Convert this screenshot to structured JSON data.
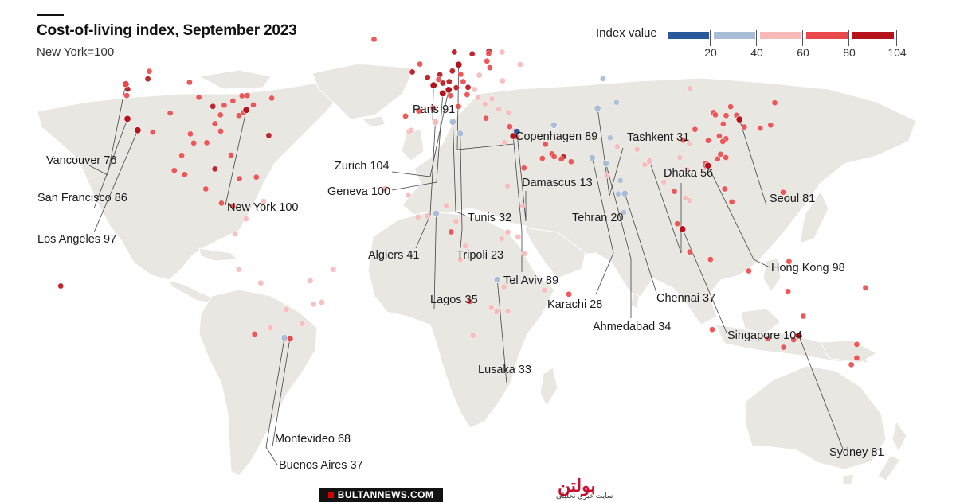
{
  "title": "Cost-of-living index, September 2023",
  "subtitle": "New York=100",
  "legend": {
    "title": "Index value",
    "ticks": [
      "20",
      "40",
      "60",
      "80",
      "104"
    ],
    "colors": [
      "#2a5a9a",
      "#a9bdd6",
      "#f7b9b9",
      "#e9494a",
      "#b5121b"
    ]
  },
  "map_data": {
    "labeled_cities": [
      {
        "name": "Vancouver",
        "value": 76,
        "lat": 49.3,
        "lon": -123.1,
        "label": "Vancouver 76"
      },
      {
        "name": "San Francisco",
        "value": 86,
        "lat": 37.8,
        "lon": -122.4,
        "label": "San Francisco 86"
      },
      {
        "name": "Los Angeles",
        "value": 97,
        "lat": 34.0,
        "lon": -118.2,
        "label": "Los Angeles 97"
      },
      {
        "name": "New York",
        "value": 100,
        "lat": 40.7,
        "lon": -74.0,
        "label": "New York 100"
      },
      {
        "name": "Paris",
        "value": 91,
        "lat": 48.9,
        "lon": 2.35,
        "label": "Paris 91"
      },
      {
        "name": "Copenhagen",
        "value": 89,
        "lat": 55.7,
        "lon": 12.6,
        "label": "Copenhagen 89"
      },
      {
        "name": "Zurich",
        "value": 104,
        "lat": 47.4,
        "lon": 8.5,
        "label": "Zurich 104"
      },
      {
        "name": "Geneva",
        "value": 100,
        "lat": 46.2,
        "lon": 6.1,
        "label": "Geneva 100"
      },
      {
        "name": "Tunis",
        "value": 32,
        "lat": 36.8,
        "lon": 10.2,
        "label": "Tunis 32"
      },
      {
        "name": "Algiers",
        "value": 41,
        "lat": 36.8,
        "lon": 3.1,
        "label": "Algiers 41"
      },
      {
        "name": "Tripoli",
        "value": 23,
        "lat": 32.9,
        "lon": 13.2,
        "label": "Tripoli 23"
      },
      {
        "name": "Damascus",
        "value": 13,
        "lat": 33.5,
        "lon": 36.3,
        "label": "Damascus 13"
      },
      {
        "name": "Tel Aviv",
        "value": 89,
        "lat": 32.1,
        "lon": 34.8,
        "label": "Tel Aviv 89"
      },
      {
        "name": "Tehran",
        "value": 20,
        "lat": 35.7,
        "lon": 51.4,
        "label": "Tehran 20"
      },
      {
        "name": "Tashkent",
        "value": 31,
        "lat": 41.3,
        "lon": 69.2,
        "label": "Tashkent 31"
      },
      {
        "name": "Dhaka",
        "value": 56,
        "lat": 23.8,
        "lon": 90.4,
        "label": "Dhaka 56"
      },
      {
        "name": "Karachi",
        "value": 28,
        "lat": 24.9,
        "lon": 67.0,
        "label": "Karachi 28"
      },
      {
        "name": "Ahmedabad",
        "value": 34,
        "lat": 23.0,
        "lon": 72.6,
        "label": "Ahmedabad 34"
      },
      {
        "name": "Chennai",
        "value": 37,
        "lat": 13.1,
        "lon": 80.3,
        "label": "Chennai 37"
      },
      {
        "name": "Seoul",
        "value": 81,
        "lat": 37.6,
        "lon": 127.0,
        "label": "Seoul 81"
      },
      {
        "name": "Hong Kong",
        "value": 98,
        "lat": 22.3,
        "lon": 114.2,
        "label": "Hong Kong 98"
      },
      {
        "name": "Singapore",
        "value": 104,
        "lat": 1.35,
        "lon": 103.8,
        "label": "Singapore 104"
      },
      {
        "name": "Lagos",
        "value": 35,
        "lat": 6.5,
        "lon": 3.4,
        "label": "Lagos 35"
      },
      {
        "name": "Lusaka",
        "value": 33,
        "lat": -15.4,
        "lon": 28.3,
        "label": "Lusaka 33"
      },
      {
        "name": "Montevideo",
        "value": 68,
        "lat": -34.9,
        "lon": -56.2,
        "label": "Montevideo 68"
      },
      {
        "name": "Buenos Aires",
        "value": 37,
        "lat": -34.6,
        "lon": -58.4,
        "label": "Buenos Aires 37"
      },
      {
        "name": "Sydney",
        "value": 81,
        "lat": -33.9,
        "lon": 151.2,
        "label": "Sydney 81"
      }
    ],
    "other_cities": [
      {
        "value": 76,
        "lat": 53.5,
        "lon": -113.5
      },
      {
        "value": 80,
        "lat": 51.0,
        "lon": -114.1
      },
      {
        "value": 75,
        "lat": 45.5,
        "lon": -73.6
      },
      {
        "value": 78,
        "lat": 43.7,
        "lon": -79.4
      },
      {
        "value": 74,
        "lat": 49.9,
        "lon": -97.1
      },
      {
        "value": 72,
        "lat": 44.6,
        "lon": -63.6
      },
      {
        "value": 70,
        "lat": 45.4,
        "lon": -75.7
      },
      {
        "value": 80,
        "lat": 47.6,
        "lon": -122.3
      },
      {
        "value": 76,
        "lat": 45.5,
        "lon": -122.7
      },
      {
        "value": 82,
        "lat": 41.9,
        "lon": -87.6
      },
      {
        "value": 78,
        "lat": 42.4,
        "lon": -71.1
      },
      {
        "value": 72,
        "lat": 39.7,
        "lon": -105.0
      },
      {
        "value": 75,
        "lat": 38.9,
        "lon": -77.0
      },
      {
        "value": 70,
        "lat": 42.3,
        "lon": -83.0
      },
      {
        "value": 72,
        "lat": 39.9,
        "lon": -75.2
      },
      {
        "value": 70,
        "lat": 44.9,
        "lon": -93.3
      },
      {
        "value": 68,
        "lat": 33.7,
        "lon": -84.4
      },
      {
        "value": 72,
        "lat": 29.8,
        "lon": -95.4
      },
      {
        "value": 70,
        "lat": 32.8,
        "lon": -96.8
      },
      {
        "value": 74,
        "lat": 25.8,
        "lon": -80.2
      },
      {
        "value": 66,
        "lat": 36.2,
        "lon": -86.8
      },
      {
        "value": 70,
        "lat": 33.4,
        "lon": -112.1
      },
      {
        "value": 64,
        "lat": 29.9,
        "lon": -90.1
      },
      {
        "value": 72,
        "lat": 39.1,
        "lon": -84.5
      },
      {
        "value": 90,
        "lat": 32.3,
        "lon": -64.8
      },
      {
        "value": 78,
        "lat": 64.1,
        "lon": -21.9
      },
      {
        "value": 62,
        "lat": 20.7,
        "lon": -103.3
      },
      {
        "value": 66,
        "lat": 25.7,
        "lon": -100.3
      },
      {
        "value": 72,
        "lat": 19.4,
        "lon": -99.1
      },
      {
        "value": 80,
        "lat": 21.2,
        "lon": -86.8
      },
      {
        "value": 70,
        "lat": 9.9,
        "lon": -84.1
      },
      {
        "value": 72,
        "lat": 8.9,
        "lon": -79.5
      },
      {
        "value": 78,
        "lat": 18.5,
        "lon": -69.9
      },
      {
        "value": 66,
        "lat": 18.0,
        "lon": -76.8
      },
      {
        "value": 60,
        "lat": 14.6,
        "lon": -90.5
      },
      {
        "value": 48,
        "lat": 10.5,
        "lon": -66.9
      },
      {
        "value": 45,
        "lat": 4.7,
        "lon": -74.1
      },
      {
        "value": 50,
        "lat": -0.2,
        "lon": -78.5
      },
      {
        "value": 55,
        "lat": -12.0,
        "lon": -77.0
      },
      {
        "value": 40,
        "lat": -15.8,
        "lon": -47.9
      },
      {
        "value": 45,
        "lat": -23.5,
        "lon": -46.6
      },
      {
        "value": 42,
        "lat": -22.9,
        "lon": -43.2
      },
      {
        "value": 62,
        "lat": -33.4,
        "lon": -70.6
      },
      {
        "value": 42,
        "lat": -16.5,
        "lon": -68.1
      },
      {
        "value": 48,
        "lat": -25.3,
        "lon": -57.6
      },
      {
        "value": 45,
        "lat": -31.4,
        "lon": -64.2
      },
      {
        "value": 55,
        "lat": -12.0,
        "lon": -38.5
      },
      {
        "value": 46,
        "lat": -30.0,
        "lon": -51.2
      },
      {
        "value": 84,
        "lat": 51.5,
        "lon": -0.1
      },
      {
        "value": 80,
        "lat": 53.3,
        "lon": -6.3
      },
      {
        "value": 76,
        "lat": 55.9,
        "lon": -3.2
      },
      {
        "value": 80,
        "lat": 52.4,
        "lon": 4.9
      },
      {
        "value": 78,
        "lat": 50.8,
        "lon": 4.4
      },
      {
        "value": 86,
        "lat": 49.6,
        "lon": 6.1
      },
      {
        "value": 80,
        "lat": 50.1,
        "lon": 8.7
      },
      {
        "value": 78,
        "lat": 52.5,
        "lon": 13.4
      },
      {
        "value": 82,
        "lat": 48.1,
        "lon": 11.6
      },
      {
        "value": 80,
        "lat": 53.6,
        "lon": 10.0
      },
      {
        "value": 80,
        "lat": 48.2,
        "lon": 16.4
      },
      {
        "value": 74,
        "lat": 45.5,
        "lon": 9.2
      },
      {
        "value": 68,
        "lat": 41.9,
        "lon": 12.5
      },
      {
        "value": 66,
        "lat": 40.4,
        "lon": -3.7
      },
      {
        "value": 64,
        "lat": 41.4,
        "lon": 2.2
      },
      {
        "value": 62,
        "lat": 38.7,
        "lon": -9.1
      },
      {
        "value": 86,
        "lat": 59.9,
        "lon": 10.8
      },
      {
        "value": 80,
        "lat": 59.3,
        "lon": 18.1
      },
      {
        "value": 80,
        "lat": 60.2,
        "lon": 24.9
      },
      {
        "value": 68,
        "lat": 56.9,
        "lon": 24.1
      },
      {
        "value": 66,
        "lat": 59.4,
        "lon": 24.8
      },
      {
        "value": 62,
        "lat": 54.7,
        "lon": 25.3
      },
      {
        "value": 58,
        "lat": 52.2,
        "lon": 21.0
      },
      {
        "value": 66,
        "lat": 50.1,
        "lon": 14.4
      },
      {
        "value": 58,
        "lat": 47.5,
        "lon": 19.0
      },
      {
        "value": 50,
        "lat": 44.4,
        "lon": 26.1
      },
      {
        "value": 48,
        "lat": 42.7,
        "lon": 23.3
      },
      {
        "value": 52,
        "lat": 44.8,
        "lon": 20.5
      },
      {
        "value": 60,
        "lat": 45.8,
        "lon": 16.0
      },
      {
        "value": 62,
        "lat": 37.98,
        "lon": 23.7
      },
      {
        "value": 46,
        "lat": 41.0,
        "lon": 29.0
      },
      {
        "value": 42,
        "lat": 39.9,
        "lon": 32.9
      },
      {
        "value": 50,
        "lat": 55.8,
        "lon": 37.6
      },
      {
        "value": 45,
        "lat": 59.9,
        "lon": 30.3
      },
      {
        "value": 42,
        "lat": 50.4,
        "lon": 30.5
      },
      {
        "value": 72,
        "lat": 35.2,
        "lon": 33.4
      },
      {
        "value": 46,
        "lat": 33.6,
        "lon": -7.6
      },
      {
        "value": 44,
        "lat": 34.0,
        "lon": -6.8
      },
      {
        "value": 50,
        "lat": 30.0,
        "lon": 31.2
      },
      {
        "value": 62,
        "lat": 24.7,
        "lon": 46.7
      },
      {
        "value": 66,
        "lat": 21.5,
        "lon": 39.2
      },
      {
        "value": 70,
        "lat": 29.4,
        "lon": 48.0
      },
      {
        "value": 72,
        "lat": 26.2,
        "lon": 50.6
      },
      {
        "value": 76,
        "lat": 25.3,
        "lon": 51.5
      },
      {
        "value": 82,
        "lat": 25.2,
        "lon": 55.3
      },
      {
        "value": 78,
        "lat": 24.5,
        "lon": 54.4
      },
      {
        "value": 64,
        "lat": 23.6,
        "lon": 58.4
      },
      {
        "value": 60,
        "lat": 31.9,
        "lon": 35.9
      },
      {
        "value": 58,
        "lat": 33.9,
        "lon": 35.5
      },
      {
        "value": 24,
        "lat": 51.1,
        "lon": 71.4
      },
      {
        "value": 28,
        "lat": 43.2,
        "lon": 76.9
      },
      {
        "value": 30,
        "lat": 31.5,
        "lon": 74.3
      },
      {
        "value": 44,
        "lat": 28.6,
        "lon": 77.2
      },
      {
        "value": 46,
        "lat": 19.1,
        "lon": 72.9
      },
      {
        "value": 30,
        "lat": 12.97,
        "lon": 77.6
      },
      {
        "value": 28,
        "lat": 17.4,
        "lon": 78.5
      },
      {
        "value": 52,
        "lat": 22.6,
        "lon": 88.4
      },
      {
        "value": 56,
        "lat": 27.7,
        "lon": 85.3
      },
      {
        "value": 38,
        "lat": 6.9,
        "lon": 79.9
      },
      {
        "value": 45,
        "lat": 16.9,
        "lon": 96.2
      },
      {
        "value": 62,
        "lat": 13.8,
        "lon": 100.5
      },
      {
        "value": 55,
        "lat": 21.0,
        "lon": 105.8
      },
      {
        "value": 58,
        "lat": 10.8,
        "lon": 106.7
      },
      {
        "value": 58,
        "lat": 11.6,
        "lon": 104.9
      },
      {
        "value": 60,
        "lat": 3.1,
        "lon": 101.7
      },
      {
        "value": 64,
        "lat": -6.2,
        "lon": 106.8
      },
      {
        "value": 68,
        "lat": -8.7,
        "lon": 115.2
      },
      {
        "value": 66,
        "lat": 14.6,
        "lon": 121.0
      },
      {
        "value": 70,
        "lat": 10.3,
        "lon": 123.9
      },
      {
        "value": 72,
        "lat": 39.9,
        "lon": 116.4
      },
      {
        "value": 78,
        "lat": 31.2,
        "lon": 121.5
      },
      {
        "value": 72,
        "lat": 23.1,
        "lon": 113.3
      },
      {
        "value": 76,
        "lat": 22.5,
        "lon": 114.1
      },
      {
        "value": 60,
        "lat": 30.7,
        "lon": 104.1
      },
      {
        "value": 58,
        "lat": 29.6,
        "lon": 106.6
      },
      {
        "value": 62,
        "lat": 34.3,
        "lon": 108.9
      },
      {
        "value": 64,
        "lat": 30.6,
        "lon": 114.3
      },
      {
        "value": 70,
        "lat": 39.1,
        "lon": 117.2
      },
      {
        "value": 66,
        "lat": 36.1,
        "lon": 120.4
      },
      {
        "value": 68,
        "lat": 41.8,
        "lon": 123.4
      },
      {
        "value": 68,
        "lat": 38.9,
        "lon": 121.6
      },
      {
        "value": 70,
        "lat": 32.1,
        "lon": 118.8
      },
      {
        "value": 72,
        "lat": 30.3,
        "lon": 120.2
      },
      {
        "value": 66,
        "lat": 26.1,
        "lon": 119.3
      },
      {
        "value": 68,
        "lat": 24.5,
        "lon": 118.1
      },
      {
        "value": 56,
        "lat": 25.0,
        "lon": 102.7
      },
      {
        "value": 74,
        "lat": 25.0,
        "lon": 121.5
      },
      {
        "value": 86,
        "lat": 22.2,
        "lon": 113.5
      },
      {
        "value": 72,
        "lat": 35.1,
        "lon": 129.0
      },
      {
        "value": 76,
        "lat": 35.7,
        "lon": 139.7
      },
      {
        "value": 72,
        "lat": 34.7,
        "lon": 135.5
      },
      {
        "value": 68,
        "lat": 43.1,
        "lon": 141.4
      },
      {
        "value": 66,
        "lat": 39.0,
        "lon": 125.8
      },
      {
        "value": 50,
        "lat": 47.9,
        "lon": 106.9
      },
      {
        "value": 70,
        "lat": 13.5,
        "lon": 144.8
      },
      {
        "value": 66,
        "lat": -9.4,
        "lon": 147.2
      },
      {
        "value": 72,
        "lat": -18.1,
        "lon": 178.4
      },
      {
        "value": 84,
        "lat": -17.5,
        "lon": -149.6
      },
      {
        "value": 76,
        "lat": -31.9,
        "lon": 115.9
      },
      {
        "value": 76,
        "lat": -34.9,
        "lon": 138.6
      },
      {
        "value": 78,
        "lat": -37.8,
        "lon": 145.0
      },
      {
        "value": 78,
        "lat": -27.5,
        "lon": 153.0
      },
      {
        "value": 76,
        "lat": -35.3,
        "lon": 149.1
      },
      {
        "value": 74,
        "lat": -12.5,
        "lon": 130.8
      },
      {
        "value": 72,
        "lat": -19.3,
        "lon": 146.8
      },
      {
        "value": 76,
        "lat": -36.8,
        "lon": 174.8
      },
      {
        "value": 74,
        "lat": -41.3,
        "lon": 174.8
      },
      {
        "value": 72,
        "lat": -43.5,
        "lon": 172.6
      },
      {
        "value": 50,
        "lat": 14.7,
        "lon": -17.4
      },
      {
        "value": 52,
        "lat": 12.6,
        "lon": -8.0
      },
      {
        "value": 48,
        "lat": 5.6,
        "lon": -0.2
      },
      {
        "value": 58,
        "lat": 5.3,
        "lon": -4.0
      },
      {
        "value": 56,
        "lat": 9.1,
        "lon": 7.5
      },
      {
        "value": 54,
        "lat": 3.9,
        "lon": 11.5
      },
      {
        "value": 60,
        "lat": 0.4,
        "lon": 9.5
      },
      {
        "value": 58,
        "lat": -4.3,
        "lon": 15.3
      },
      {
        "value": 54,
        "lat": -8.8,
        "lon": 13.2
      },
      {
        "value": 44,
        "lat": 9.0,
        "lon": 38.7
      },
      {
        "value": 48,
        "lat": -1.3,
        "lon": 36.8
      },
      {
        "value": 42,
        "lat": 0.3,
        "lon": 32.6
      },
      {
        "value": 44,
        "lat": -6.8,
        "lon": 39.3
      },
      {
        "value": 40,
        "lat": -1.9,
        "lon": 30.1
      },
      {
        "value": 50,
        "lat": 15.6,
        "lon": 32.5
      },
      {
        "value": 42,
        "lat": -17.8,
        "lon": 31.0
      },
      {
        "value": 52,
        "lat": -25.9,
        "lon": 32.6
      },
      {
        "value": 48,
        "lat": -26.2,
        "lon": 28.0
      },
      {
        "value": 50,
        "lat": -25.7,
        "lon": 28.2
      },
      {
        "value": 54,
        "lat": -33.9,
        "lon": 18.4
      },
      {
        "value": 60,
        "lat": -22.6,
        "lon": 17.1
      },
      {
        "value": 58,
        "lat": -24.7,
        "lon": 25.9
      },
      {
        "value": 46,
        "lat": -18.9,
        "lon": 47.5
      },
      {
        "value": 70,
        "lat": -20.2,
        "lon": 57.5
      }
    ]
  },
  "branding": {
    "site": "BULTANNEWS.COM",
    "logo": "بولتن",
    "logo_sub": "سایت خبری تحلیلی"
  }
}
